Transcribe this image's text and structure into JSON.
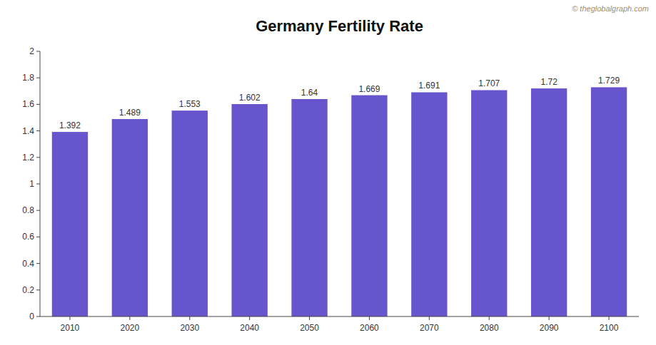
{
  "chart_data": {
    "type": "bar",
    "title": "Germany Fertility Rate",
    "categories": [
      "2010",
      "2020",
      "2030",
      "2040",
      "2050",
      "2060",
      "2070",
      "2080",
      "2090",
      "2100"
    ],
    "values": [
      1.392,
      1.489,
      1.553,
      1.602,
      1.64,
      1.669,
      1.691,
      1.707,
      1.72,
      1.729
    ],
    "color": "#6655cc",
    "ylim": [
      0,
      2
    ],
    "yticks": [
      0,
      0.2,
      0.4,
      0.6,
      0.8,
      1,
      1.2,
      1.4,
      1.6,
      1.8,
      2
    ],
    "grid": false,
    "data_labels": true,
    "annotations": [
      "© theglobalgraph.com"
    ]
  }
}
